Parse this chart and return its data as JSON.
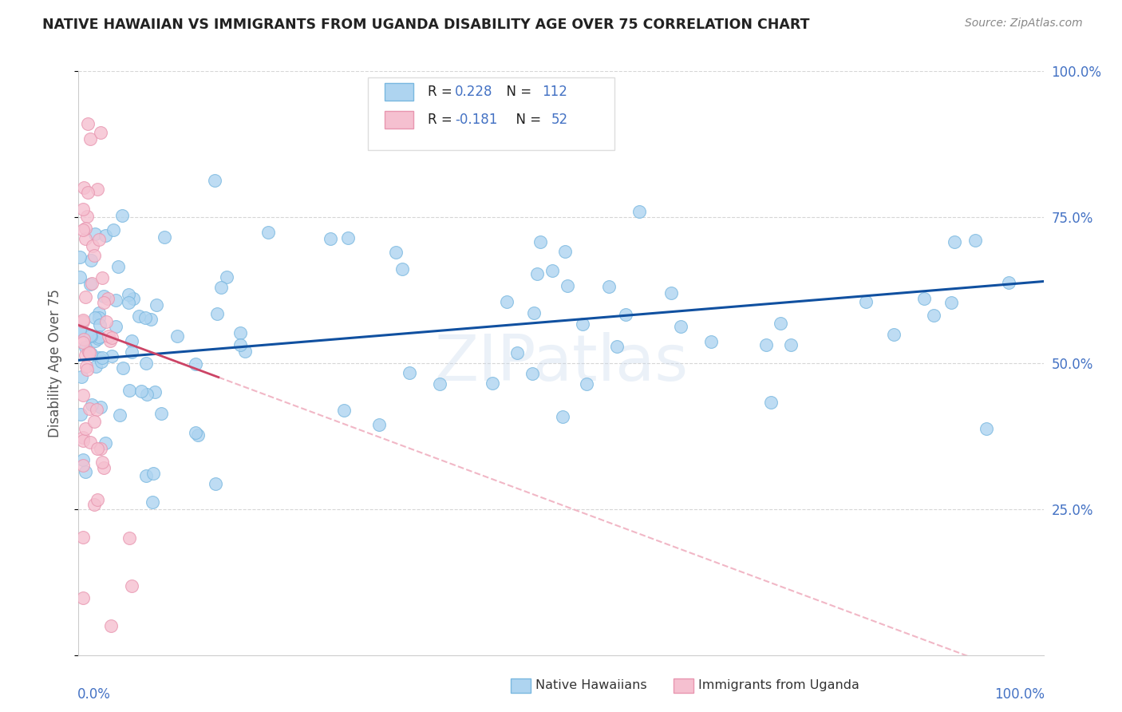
{
  "title": "NATIVE HAWAIIAN VS IMMIGRANTS FROM UGANDA DISABILITY AGE OVER 75 CORRELATION CHART",
  "source": "Source: ZipAtlas.com",
  "ylabel": "Disability Age Over 75",
  "blue_R": 0.228,
  "blue_N": 112,
  "pink_R": -0.181,
  "pink_N": 52,
  "blue_color": "#aed4f0",
  "blue_edge": "#7ab8e0",
  "pink_color": "#f5c0d0",
  "pink_edge": "#e896b0",
  "blue_line_color": "#1050a0",
  "pink_line_color": "#cc4466",
  "pink_dash_color": "#f0b0c0",
  "legend_label_blue": "Native Hawaiians",
  "legend_label_pink": "Immigrants from Uganda",
  "watermark": "ZIPatlas",
  "background_color": "#ffffff",
  "title_color": "#222222",
  "source_color": "#888888",
  "ylabel_color": "#555555",
  "axis_label_color": "#4472c4",
  "grid_color": "#cccccc",
  "legend_text_black": "R = ",
  "legend_blue_val_1": "0.228",
  "legend_black_n1": "  N = ",
  "legend_blue_val_2": "112",
  "legend_blue_val_3": "-0.181",
  "legend_blue_val_4": "52"
}
